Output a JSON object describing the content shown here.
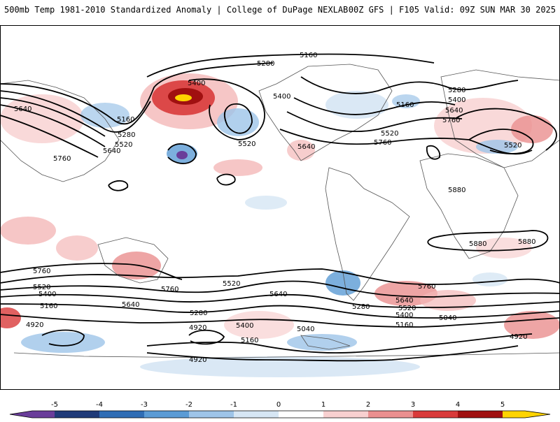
{
  "header": {
    "title_left": "500mb Temp 1981-2010 Standardized Anomaly | College of DuPage NEXLAB",
    "title_right": "00Z GFS | F105 Valid: 09Z SUN MAR 30 2025"
  },
  "colorbar": {
    "ticks": [
      "-5",
      "-4",
      "-3",
      "-2",
      "-1",
      "0",
      "1",
      "2",
      "3",
      "4",
      "5"
    ],
    "colors": [
      "#6a3d9a",
      "#1f3a78",
      "#2f6db5",
      "#5b9bd5",
      "#9ec4e8",
      "#d6e6f4",
      "#ffffff",
      "#f8d0d0",
      "#ea8f8f",
      "#d93a3a",
      "#a01010",
      "#ffd400"
    ]
  },
  "contours": {
    "labels": [
      "5160",
      "5280",
      "5400",
      "5640",
      "5160",
      "5280",
      "5520",
      "5640",
      "5760",
      "5520",
      "5640",
      "5760",
      "5520",
      "5400",
      "5160",
      "5280",
      "5400",
      "5640",
      "5760",
      "5520",
      "5880",
      "5880",
      "5880",
      "5760",
      "5520",
      "5400",
      "5160",
      "4920",
      "5640",
      "5760",
      "5520",
      "5640",
      "5280",
      "4920",
      "5400",
      "5160",
      "5040",
      "4920",
      "5760",
      "5640",
      "5520",
      "5400",
      "5280",
      "5160",
      "5040",
      "4920"
    ]
  }
}
